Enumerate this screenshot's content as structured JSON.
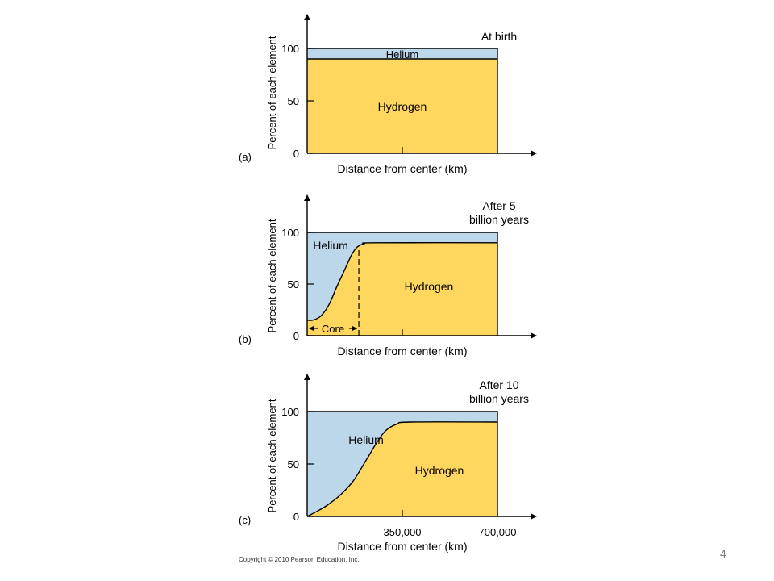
{
  "colors": {
    "hydrogen": "#ffd75e",
    "helium": "#bcd6ea",
    "axis": "#000000"
  },
  "chart_data": [
    {
      "type": "area",
      "panel_label": "(a)",
      "annotation": "At birth",
      "xlabel": "Distance from center (km)",
      "ylabel": "Percent of each element",
      "yticks": [
        "0",
        "50",
        "100"
      ],
      "ylim": [
        0,
        100
      ],
      "xlim": [
        0,
        700000
      ],
      "x_tick_labels": [],
      "series": [
        {
          "name": "Helium",
          "fill": "above-curve"
        },
        {
          "name": "Hydrogen",
          "fill": "below-curve"
        }
      ],
      "hydrogen_percent": {
        "x": [
          0,
          700000
        ],
        "y": [
          90,
          90
        ]
      }
    },
    {
      "type": "area",
      "panel_label": "(b)",
      "annotation": [
        "After 5",
        "billion years"
      ],
      "xlabel": "Distance from center (km)",
      "ylabel": "Percent of each element",
      "yticks": [
        "0",
        "50",
        "100"
      ],
      "ylim": [
        0,
        100
      ],
      "xlim": [
        0,
        700000
      ],
      "x_tick_labels": [],
      "core_label": "Core",
      "core_boundary_x": 190000,
      "series": [
        {
          "name": "Helium",
          "fill": "above-curve"
        },
        {
          "name": "Hydrogen",
          "fill": "below-curve"
        }
      ],
      "hydrogen_percent": {
        "x": [
          0,
          20000,
          50000,
          80000,
          110000,
          140000,
          165000,
          185000,
          210000,
          250000,
          700000
        ],
        "y": [
          15,
          15,
          19,
          30,
          48,
          65,
          79,
          86,
          89,
          90,
          90
        ]
      }
    },
    {
      "type": "area",
      "panel_label": "(c)",
      "annotation": [
        "After 10",
        "billion years"
      ],
      "xlabel": "Distance from center (km)",
      "ylabel": "Percent of each element",
      "yticks": [
        "0",
        "50",
        "100"
      ],
      "ylim": [
        0,
        100
      ],
      "xlim": [
        0,
        700000
      ],
      "x_tick_labels": [
        "350,000",
        "700,000"
      ],
      "series": [
        {
          "name": "Helium",
          "fill": "above-curve"
        },
        {
          "name": "Hydrogen",
          "fill": "below-curve"
        }
      ],
      "hydrogen_percent": {
        "x": [
          0,
          30000,
          70000,
          120000,
          170000,
          220000,
          260000,
          290000,
          330000,
          380000,
          700000
        ],
        "y": [
          0,
          4,
          10,
          20,
          34,
          55,
          72,
          82,
          88,
          90,
          90
        ]
      }
    }
  ],
  "footer": {
    "copyright": "Copyright © 2010 Pearson Education, Inc.",
    "page_number": "4"
  }
}
